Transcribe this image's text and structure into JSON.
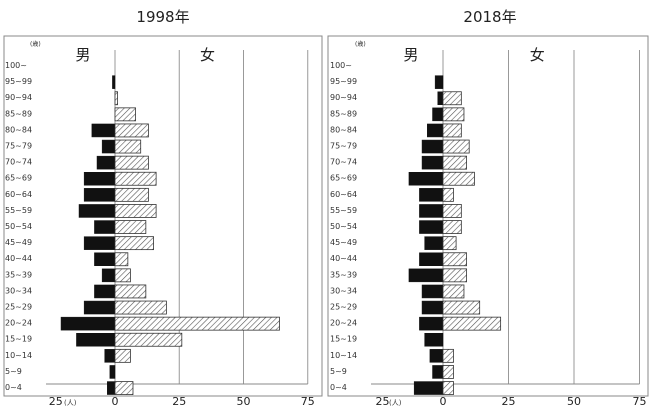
{
  "chart_data": [
    {
      "type": "bar",
      "title": "1998年",
      "orientation": "horizontal",
      "sex_labels": [
        "男",
        "女"
      ],
      "unit_top": "(歳)",
      "unit_bottom": "(人)",
      "categories": [
        "0~4",
        "5~9",
        "10~14",
        "15~19",
        "20~24",
        "25~29",
        "30~34",
        "35~39",
        "40~44",
        "45~49",
        "50~54",
        "55~59",
        "60~64",
        "65~69",
        "70~74",
        "75~79",
        "80~84",
        "85~89",
        "90~94",
        "95~99",
        "100~"
      ],
      "series": [
        {
          "name": "男",
          "values": [
            3,
            2,
            4,
            15,
            21,
            12,
            8,
            5,
            8,
            12,
            8,
            14,
            12,
            12,
            7,
            5,
            9,
            0,
            0,
            1,
            0
          ]
        },
        {
          "name": "女",
          "values": [
            7,
            0,
            6,
            26,
            64,
            20,
            12,
            6,
            5,
            15,
            12,
            16,
            13,
            16,
            13,
            10,
            13,
            8,
            1,
            0,
            0
          ]
        }
      ],
      "x_ticks": [
        "25",
        "0",
        "25",
        "50",
        "75"
      ],
      "xlim": [
        -25,
        75
      ],
      "grid": true
    },
    {
      "type": "bar",
      "title": "2018年",
      "orientation": "horizontal",
      "sex_labels": [
        "男",
        "女"
      ],
      "unit_top": "(歳)",
      "unit_bottom": "(人)",
      "categories": [
        "0~4",
        "5~9",
        "10~14",
        "15~19",
        "20~24",
        "25~29",
        "30~34",
        "35~39",
        "40~44",
        "45~49",
        "50~54",
        "55~59",
        "60~64",
        "65~69",
        "70~74",
        "75~79",
        "80~84",
        "85~89",
        "90~94",
        "95~99",
        "100~"
      ],
      "series": [
        {
          "name": "男",
          "values": [
            11,
            4,
            5,
            7,
            9,
            8,
            8,
            13,
            9,
            7,
            9,
            9,
            9,
            13,
            8,
            8,
            6,
            4,
            2,
            3,
            0
          ]
        },
        {
          "name": "女",
          "values": [
            4,
            4,
            4,
            0,
            22,
            14,
            8,
            9,
            9,
            5,
            7,
            7,
            4,
            12,
            9,
            10,
            7,
            8,
            7,
            0,
            0
          ]
        }
      ],
      "x_ticks": [
        "25",
        "0",
        "25",
        "50",
        "75"
      ],
      "xlim": [
        -25,
        75
      ],
      "grid": true
    }
  ]
}
